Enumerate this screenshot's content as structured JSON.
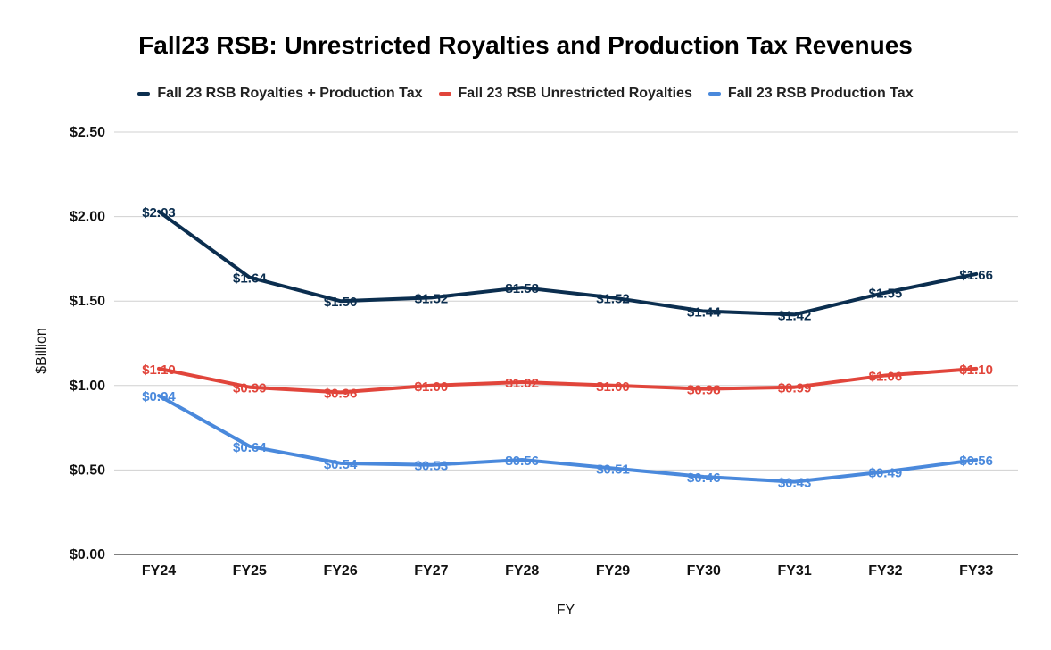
{
  "chart_data": {
    "type": "line",
    "title": "Fall23 RSB: Unrestricted Royalties and Production Tax Revenues",
    "xlabel": "FY",
    "ylabel": "$Billion",
    "categories": [
      "FY24",
      "FY25",
      "FY26",
      "FY27",
      "FY28",
      "FY29",
      "FY30",
      "FY31",
      "FY32",
      "FY33"
    ],
    "ylim": [
      0,
      2.5
    ],
    "yticks": [
      0,
      0.5,
      1.0,
      1.5,
      2.0,
      2.5
    ],
    "ytick_labels": [
      "$0.00",
      "$0.50",
      "$1.00",
      "$1.50",
      "$2.00",
      "$2.50"
    ],
    "grid": true,
    "legend_position": "top",
    "series": [
      {
        "name": "Fall 23 RSB Royalties + Production Tax",
        "color": "#0b2e4f",
        "values": [
          2.03,
          1.64,
          1.5,
          1.52,
          1.58,
          1.52,
          1.44,
          1.42,
          1.55,
          1.66
        ],
        "labels": [
          "$2.03",
          "$1.64",
          "$1.50",
          "$1.52",
          "$1.58",
          "$1.52",
          "$1.44",
          "$1.42",
          "$1.55",
          "$1.66"
        ]
      },
      {
        "name": "Fall 23 RSB Unrestricted Royalties",
        "color": "#e1453b",
        "values": [
          1.1,
          0.99,
          0.96,
          1.0,
          1.02,
          1.0,
          0.98,
          0.99,
          1.06,
          1.1
        ],
        "labels": [
          "$1.10",
          "$0.99",
          "$0.96",
          "$1.00",
          "$1.02",
          "$1.00",
          "$0.98",
          "$0.99",
          "$1.06",
          "$1.10"
        ]
      },
      {
        "name": "Fall 23 RSB Production Tax",
        "color": "#4a89dc",
        "values": [
          0.94,
          0.64,
          0.54,
          0.53,
          0.56,
          0.51,
          0.46,
          0.43,
          0.49,
          0.56
        ],
        "labels": [
          "$0.94",
          "$0.64",
          "$0.54",
          "$0.53",
          "$0.56",
          "$0.51",
          "$0.46",
          "$0.43",
          "$0.49",
          "$0.56"
        ]
      }
    ]
  }
}
